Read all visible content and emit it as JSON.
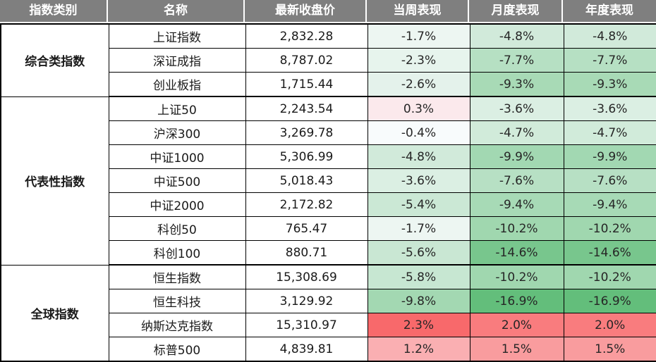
{
  "chart_data": {
    "type": "table",
    "columns": [
      "指数类别",
      "名称",
      "最新收盘价",
      "当周表现",
      "月度表现",
      "年度表现"
    ],
    "groups": [
      {
        "category": "综合类指数",
        "rows": [
          {
            "name": "上证指数",
            "close": "2,832.28",
            "week": "-1.7%",
            "month": "-4.8%",
            "year": "-4.8%"
          },
          {
            "name": "深证成指",
            "close": "8,787.02",
            "week": "-2.3%",
            "month": "-7.7%",
            "year": "-7.7%"
          },
          {
            "name": "创业板指",
            "close": "1,715.44",
            "week": "-2.6%",
            "month": "-9.3%",
            "year": "-9.3%"
          }
        ]
      },
      {
        "category": "代表性指数",
        "rows": [
          {
            "name": "上证50",
            "close": "2,243.54",
            "week": "0.3%",
            "month": "-3.6%",
            "year": "-3.6%"
          },
          {
            "name": "沪深300",
            "close": "3,269.78",
            "week": "-0.4%",
            "month": "-4.7%",
            "year": "-4.7%"
          },
          {
            "name": "中证1000",
            "close": "5,306.99",
            "week": "-4.8%",
            "month": "-9.9%",
            "year": "-9.9%"
          },
          {
            "name": "中证500",
            "close": "5,018.43",
            "week": "-3.6%",
            "month": "-7.6%",
            "year": "-7.6%"
          },
          {
            "name": "中证2000",
            "close": "2,172.82",
            "week": "-5.4%",
            "month": "-9.4%",
            "year": "-9.4%"
          },
          {
            "name": "科创50",
            "close": "765.47",
            "week": "-1.7%",
            "month": "-10.2%",
            "year": "-10.2%"
          },
          {
            "name": "科创100",
            "close": "880.71",
            "week": "-5.6%",
            "month": "-14.6%",
            "year": "-14.6%"
          }
        ]
      },
      {
        "category": "全球指数",
        "rows": [
          {
            "name": "恒生指数",
            "close": "15,308.69",
            "week": "-5.8%",
            "month": "-10.2%",
            "year": "-10.2%"
          },
          {
            "name": "恒生科技",
            "close": "3,129.92",
            "week": "-9.8%",
            "month": "-16.9%",
            "year": "-16.9%"
          },
          {
            "name": "纳斯达克指数",
            "close": "15,310.97",
            "week": "2.3%",
            "month": "2.0%",
            "year": "2.0%"
          },
          {
            "name": "标普500",
            "close": "4,839.81",
            "week": "1.2%",
            "month": "1.5%",
            "year": "1.5%"
          }
        ]
      }
    ],
    "color_scale": {
      "type": "3-color",
      "min_value": -16.9,
      "mid_value": 0,
      "max_value": 2.3,
      "min_color": "#63BE7B",
      "mid_color": "#FCFCFF",
      "max_color": "#F8696B"
    },
    "layout": {
      "header_bg": "#7F7F7F",
      "header_text_color": "#FFFFFF",
      "border_color": "#000000",
      "grid": "on"
    }
  }
}
